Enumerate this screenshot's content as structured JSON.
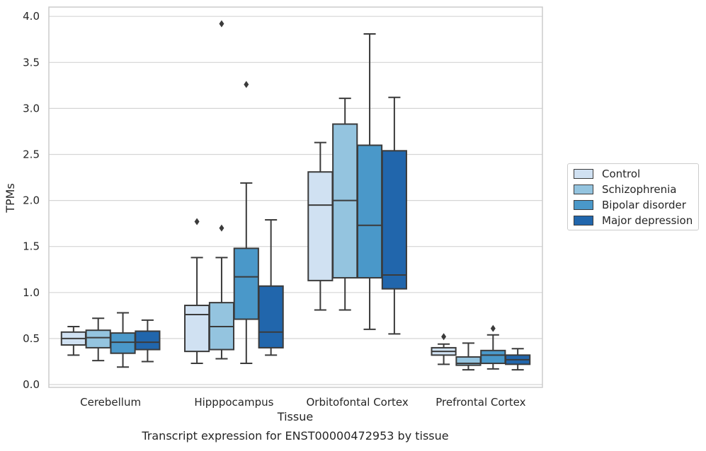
{
  "chart_data": {
    "type": "box",
    "title": "",
    "caption": "Transcript expression for ENST00000472953 by tissue",
    "xlabel": "Tissue",
    "ylabel": "TPMs",
    "ylim": [
      -0.02,
      4.1
    ],
    "yticks": [
      "0.0",
      "0.5",
      "1.0",
      "1.5",
      "2.0",
      "2.5",
      "3.0",
      "3.5",
      "4.0"
    ],
    "grid": "horizontal",
    "legend_position": "right",
    "categories": [
      "Cerebellum",
      "Hipppocampus",
      "Orbitofontal Cortex",
      "Prefrontal Cortex"
    ],
    "series": [
      {
        "name": "Control",
        "color": "#d0e1f2",
        "boxes": [
          {
            "whisker_low": 0.32,
            "q1": 0.43,
            "median": 0.5,
            "q3": 0.57,
            "whisker_high": 0.63,
            "outliers": []
          },
          {
            "whisker_low": 0.23,
            "q1": 0.36,
            "median": 0.76,
            "q3": 0.86,
            "whisker_high": 1.38,
            "outliers": [
              1.77
            ]
          },
          {
            "whisker_low": 0.81,
            "q1": 1.13,
            "median": 1.95,
            "q3": 2.31,
            "whisker_high": 2.63,
            "outliers": []
          },
          {
            "whisker_low": 0.22,
            "q1": 0.32,
            "median": 0.36,
            "q3": 0.4,
            "whisker_high": 0.44,
            "outliers": [
              0.52
            ]
          }
        ]
      },
      {
        "name": "Schizophrenia",
        "color": "#94c4df",
        "boxes": [
          {
            "whisker_low": 0.26,
            "q1": 0.4,
            "median": 0.51,
            "q3": 0.59,
            "whisker_high": 0.72,
            "outliers": []
          },
          {
            "whisker_low": 0.28,
            "q1": 0.38,
            "median": 0.63,
            "q3": 0.89,
            "whisker_high": 1.38,
            "outliers": [
              1.7,
              3.92
            ]
          },
          {
            "whisker_low": 0.81,
            "q1": 1.16,
            "median": 2.0,
            "q3": 2.83,
            "whisker_high": 3.11,
            "outliers": []
          },
          {
            "whisker_low": 0.16,
            "q1": 0.21,
            "median": 0.23,
            "q3": 0.3,
            "whisker_high": 0.45,
            "outliers": []
          }
        ]
      },
      {
        "name": "Bipolar disorder",
        "color": "#4a98c9",
        "boxes": [
          {
            "whisker_low": 0.19,
            "q1": 0.34,
            "median": 0.46,
            "q3": 0.56,
            "whisker_high": 0.78,
            "outliers": []
          },
          {
            "whisker_low": 0.23,
            "q1": 0.71,
            "median": 1.17,
            "q3": 1.48,
            "whisker_high": 2.19,
            "outliers": [
              3.26
            ]
          },
          {
            "whisker_low": 0.6,
            "q1": 1.16,
            "median": 1.73,
            "q3": 2.6,
            "whisker_high": 3.81,
            "outliers": []
          },
          {
            "whisker_low": 0.17,
            "q1": 0.23,
            "median": 0.32,
            "q3": 0.37,
            "whisker_high": 0.54,
            "outliers": [
              0.61
            ]
          }
        ]
      },
      {
        "name": "Major depression",
        "color": "#2166ac",
        "boxes": [
          {
            "whisker_low": 0.25,
            "q1": 0.38,
            "median": 0.46,
            "q3": 0.58,
            "whisker_high": 0.7,
            "outliers": []
          },
          {
            "whisker_low": 0.32,
            "q1": 0.4,
            "median": 0.57,
            "q3": 1.07,
            "whisker_high": 1.79,
            "outliers": []
          },
          {
            "whisker_low": 0.55,
            "q1": 1.04,
            "median": 1.19,
            "q3": 2.54,
            "whisker_high": 3.12,
            "outliers": []
          },
          {
            "whisker_low": 0.16,
            "q1": 0.22,
            "median": 0.27,
            "q3": 0.32,
            "whisker_high": 0.39,
            "outliers": []
          }
        ]
      }
    ]
  }
}
